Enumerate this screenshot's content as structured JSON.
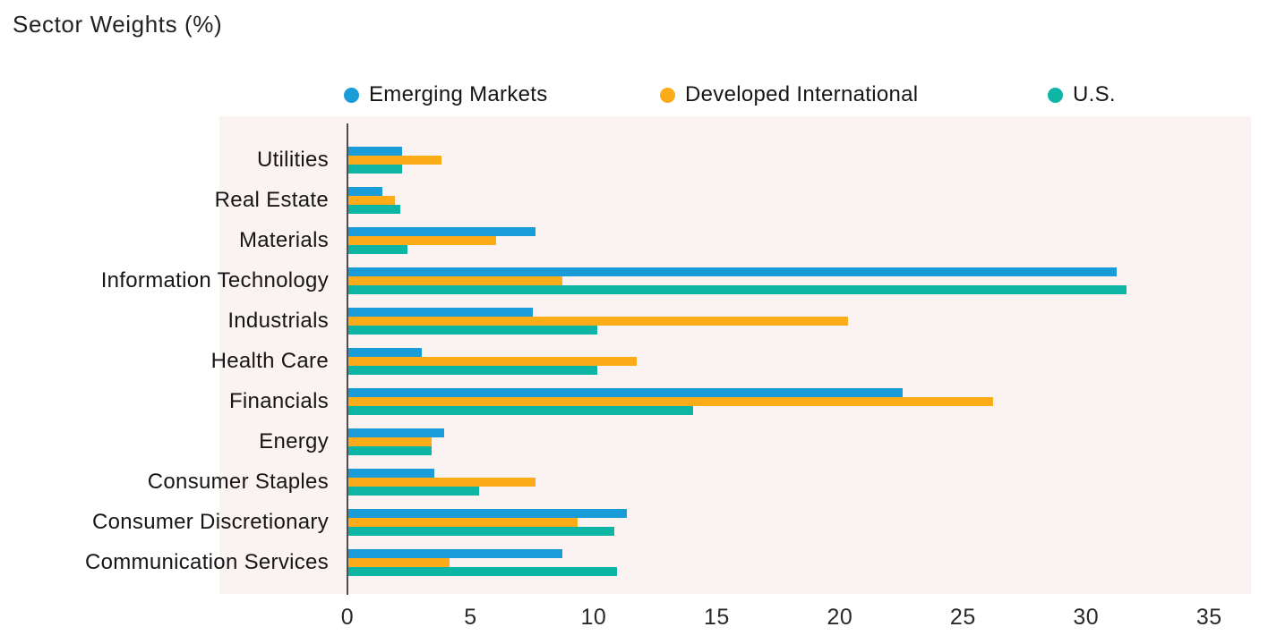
{
  "title": "Sector Weights (%)",
  "colors": {
    "emerging_markets": "#1A9CD8",
    "developed_international": "#FBAC18",
    "us": "#0CB5A4",
    "plot_background": "#FAF3F1",
    "axis_line": "#4D4D4D",
    "text": "#161616"
  },
  "chart_data": {
    "type": "bar",
    "orientation": "horizontal",
    "title": "Sector Weights (%)",
    "categories": [
      "Utilities",
      "Real Estate",
      "Materials",
      "Information Technology",
      "Industrials",
      "Health Care",
      "Financials",
      "Energy",
      "Consumer Staples",
      "Consumer Discretionary",
      "Communication Services"
    ],
    "series": [
      {
        "name": "Emerging Markets",
        "color": "#1A9CD8",
        "values": [
          2.2,
          1.4,
          7.6,
          31.2,
          7.5,
          3.0,
          22.5,
          3.9,
          3.5,
          11.3,
          8.7
        ]
      },
      {
        "name": "Developed International",
        "color": "#FBAC18",
        "values": [
          3.8,
          1.9,
          6.0,
          8.7,
          20.3,
          11.7,
          26.2,
          3.4,
          7.6,
          9.3,
          4.1
        ]
      },
      {
        "name": "U.S.",
        "color": "#0CB5A4",
        "values": [
          2.2,
          2.1,
          2.4,
          31.6,
          10.1,
          10.1,
          14.0,
          3.4,
          5.3,
          10.8,
          10.9
        ]
      }
    ],
    "xticks": [
      0,
      5,
      10,
      15,
      20,
      25,
      30,
      35
    ],
    "xlim": [
      0,
      36.7
    ],
    "xlabel": "",
    "ylabel": "",
    "grid": false,
    "legend_position": "top"
  }
}
